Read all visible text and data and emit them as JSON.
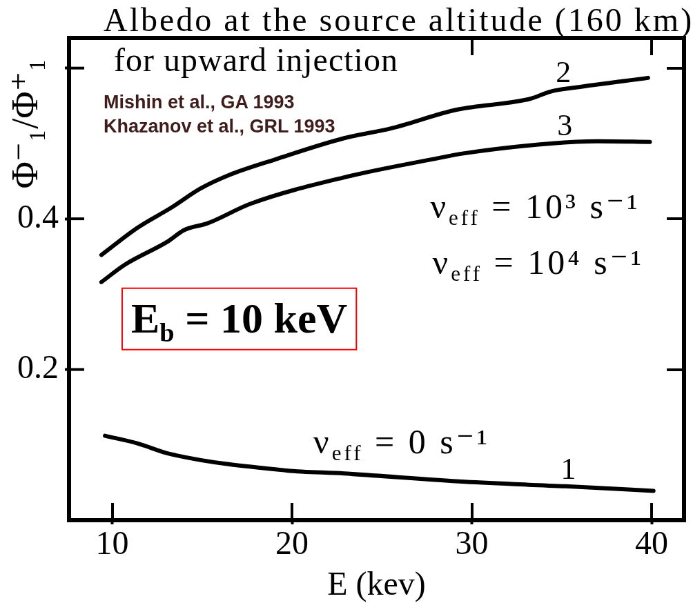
{
  "chart_data": {
    "type": "line",
    "title": "Albedo at the source altitude (160 km)",
    "subtitle": "for upward injection",
    "xlabel": "E (kev)",
    "ylabel": "Φ⁻₁/Φ⁺₁",
    "xlim": [
      7.6,
      41.8
    ],
    "xticks": [
      10,
      20,
      30,
      40
    ],
    "ylim": [
      0,
      0.64
    ],
    "yticks": [
      0.2,
      0.4,
      {
        "value": 0.6,
        "label": null
      }
    ],
    "series": [
      {
        "name": "1",
        "color": "#000000",
        "x": [
          9.6,
          11.4,
          13.2,
          19.7,
          22.9,
          29.6,
          35.2,
          40.1
        ],
        "values": [
          0.112,
          0.102,
          0.088,
          0.066,
          0.062,
          0.051,
          0.045,
          0.039
        ]
      },
      {
        "name": "2",
        "color": "#000000",
        "x": [
          9.4,
          11.4,
          13.3,
          14.9,
          16.5,
          19.1,
          22.9,
          25.5,
          29.2,
          33.2,
          34.4,
          35.7,
          39.8
        ],
        "values": [
          0.352,
          0.388,
          0.415,
          0.44,
          0.458,
          0.479,
          0.507,
          0.52,
          0.545,
          0.559,
          0.569,
          0.574,
          0.587
        ]
      },
      {
        "name": "3",
        "color": "#000000",
        "x": [
          9.4,
          10.7,
          13.1,
          14.0,
          15.3,
          17.7,
          22.9,
          27.8,
          29.6,
          34.4,
          37.0,
          39.9
        ],
        "values": [
          0.316,
          0.339,
          0.37,
          0.385,
          0.394,
          0.42,
          0.455,
          0.479,
          0.487,
          0.5,
          0.503,
          0.502
        ]
      }
    ],
    "annotations": [
      "Mishin et al., GA 1993",
      "Khazanov et al., GRL 1993",
      "E$_{b}$ = 10 keV",
      "ν$_{eff}$ = 10³ s⁻¹",
      "ν$_{eff}$ = 10⁴ s⁻¹",
      "ν$_{eff}$ = 0 s⁻¹"
    ]
  }
}
